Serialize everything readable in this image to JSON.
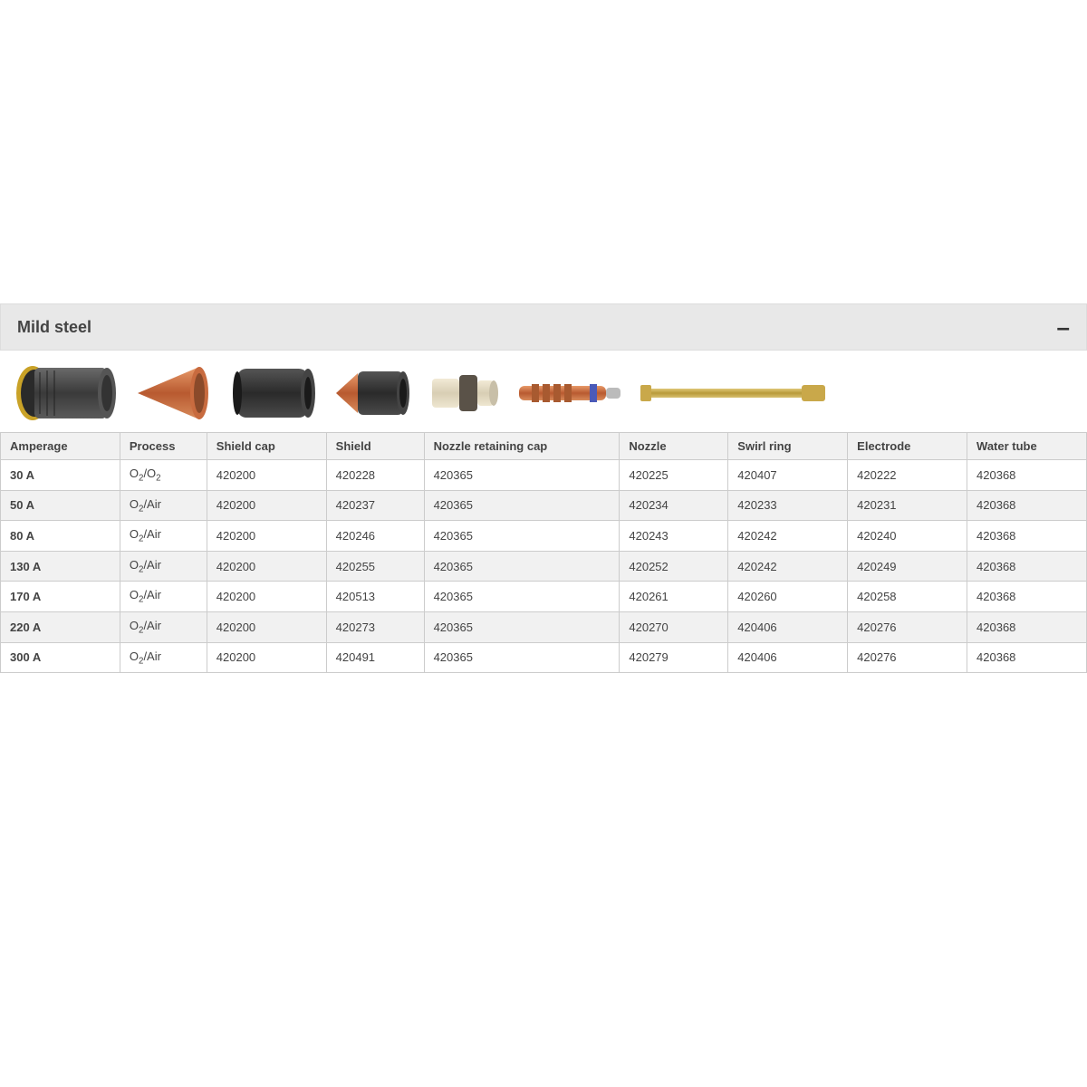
{
  "section": {
    "title": "Mild steel",
    "collapse_symbol": "–"
  },
  "columns": [
    "Amperage",
    "Process",
    "Shield cap",
    "Shield",
    "Nozzle retaining cap",
    "Nozzle",
    "Swirl ring",
    "Electrode",
    "Water tube"
  ],
  "rows": [
    {
      "amperage": "30 A",
      "process": "O₂/O₂",
      "shield_cap": "420200",
      "shield": "420228",
      "nrc": "420365",
      "nozzle": "420225",
      "swirl": "420407",
      "electrode": "420222",
      "water": "420368"
    },
    {
      "amperage": "50 A",
      "process": "O₂/Air",
      "shield_cap": "420200",
      "shield": "420237",
      "nrc": "420365",
      "nozzle": "420234",
      "swirl": "420233",
      "electrode": "420231",
      "water": "420368"
    },
    {
      "amperage": "80 A",
      "process": "O₂/Air",
      "shield_cap": "420200",
      "shield": "420246",
      "nrc": "420365",
      "nozzle": "420243",
      "swirl": "420242",
      "electrode": "420240",
      "water": "420368"
    },
    {
      "amperage": "130 A",
      "process": "O₂/Air",
      "shield_cap": "420200",
      "shield": "420255",
      "nrc": "420365",
      "nozzle": "420252",
      "swirl": "420242",
      "electrode": "420249",
      "water": "420368"
    },
    {
      "amperage": "170 A",
      "process": "O₂/Air",
      "shield_cap": "420200",
      "shield": "420513",
      "nrc": "420365",
      "nozzle": "420261",
      "swirl": "420260",
      "electrode": "420258",
      "water": "420368"
    },
    {
      "amperage": "220 A",
      "process": "O₂/Air",
      "shield_cap": "420200",
      "shield": "420273",
      "nrc": "420365",
      "nozzle": "420270",
      "swirl": "420406",
      "electrode": "420276",
      "water": "420368"
    },
    {
      "amperage": "300 A",
      "process": "O₂/Air",
      "shield_cap": "420200",
      "shield": "420491",
      "nrc": "420365",
      "nozzle": "420279",
      "swirl": "420406",
      "electrode": "420276",
      "water": "420368"
    }
  ],
  "part_images": {
    "shield_cap_color_outer": "#c9a227",
    "shield_cap_color_body": "#4a4a4a",
    "shield_color": "#c86b3f",
    "nrc_color": "#3a3a3a",
    "nozzle_body": "#4a4a4a",
    "nozzle_tip": "#c86b3f",
    "swirl_body": "#e6dcc8",
    "swirl_dark": "#5a5248",
    "electrode_color": "#c86b3f",
    "electrode_band": "#3a4aa8",
    "water_tube_color": "#c9a84a"
  },
  "styling": {
    "header_bg": "#e8e8e8",
    "row_alt_bg": "#f1f1f1",
    "border_color": "#cccccc",
    "text_color": "#444444",
    "title_fontsize": 18,
    "cell_fontsize": 13
  }
}
